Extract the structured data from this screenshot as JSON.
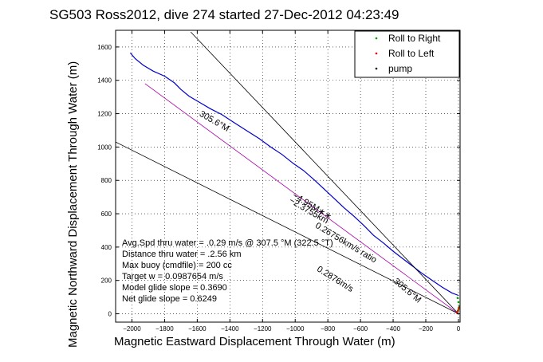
{
  "chart_data": {
    "type": "line",
    "title": "SG503 Ross2012, dive 274 started 27-Dec-2012 04:23:49",
    "xlabel": "Magnetic Eastward Displacement Through Water (m)",
    "ylabel": "Magnetic Northward Displacement Through Water (m)",
    "xlim": [
      -2100,
      10
    ],
    "ylim": [
      -50,
      1700
    ],
    "xticks": [
      -2000,
      -1800,
      -1600,
      -1400,
      -1200,
      -1000,
      -800,
      -600,
      -400,
      -200,
      0
    ],
    "yticks": [
      0,
      200,
      400,
      600,
      800,
      1000,
      1200,
      1400,
      1600
    ],
    "grid": true,
    "legend_position": "top-right",
    "legend": [
      {
        "label": "Roll to Right",
        "color": "#00a000"
      },
      {
        "label": "Roll to Left",
        "color": "#ff0000"
      },
      {
        "label": "pump",
        "color": "#000000"
      }
    ],
    "series": [
      {
        "color": "#0000cc",
        "style": "line",
        "x": [
          -2010,
          -1980,
          -1930,
          -1870,
          -1800,
          -1740,
          -1700,
          -1650,
          -1590,
          -1520,
          -1450,
          -1380,
          -1300,
          -1220,
          -1150,
          -1080,
          -1010,
          -950,
          -880,
          -820,
          -760,
          -700,
          -640,
          -580,
          -520,
          -460,
          -400,
          -340,
          -280,
          -220,
          -160,
          -100,
          -40,
          0
        ],
        "y": [
          1565,
          1530,
          1490,
          1455,
          1425,
          1385,
          1345,
          1305,
          1270,
          1230,
          1195,
          1150,
          1100,
          1050,
          1000,
          955,
          900,
          860,
          800,
          745,
          690,
          635,
          585,
          530,
          470,
          425,
          375,
          330,
          285,
          240,
          200,
          160,
          125,
          110
        ]
      },
      {
        "color": "#aa00aa",
        "style": "line",
        "x": [
          -1920,
          0
        ],
        "y": [
          1380,
          0
        ]
      },
      {
        "color": "#000000",
        "style": "line",
        "x": [
          -1640,
          0
        ],
        "y": [
          1690,
          0
        ]
      },
      {
        "color": "#000000",
        "style": "line",
        "x": [
          -2100,
          0
        ],
        "y": [
          1030,
          0
        ]
      },
      {
        "color": "#00a000",
        "style": "points",
        "x": [
          -5,
          0,
          5,
          0,
          -5
        ],
        "y": [
          10,
          25,
          45,
          70,
          95
        ]
      },
      {
        "color": "#ff0000",
        "style": "points",
        "x": [
          -8,
          -3,
          2
        ],
        "y": [
          5,
          18,
          35
        ]
      }
    ],
    "annotations": {
      "line_labels": [
        {
          "text": "305.6°M",
          "x": -1590,
          "y": 1190,
          "angle": 30
        },
        {
          "text": "−2.3755km",
          "x": -1040,
          "y": 670,
          "angle": 30
        },
        {
          "text": "−4.95M∗∗",
          "x": -1020,
          "y": 700,
          "angle": 31
        },
        {
          "text": "0.26756km/s ratio",
          "x": -880,
          "y": 520,
          "angle": 31
        },
        {
          "text": "305.6°M",
          "x": -400,
          "y": 190,
          "angle": 40
        },
        {
          "text": "0.2876m/s",
          "x": -870,
          "y": 260,
          "angle": 32
        }
      ],
      "stats": [
        "Avg.Spd thru water = .0.29 m/s @ 307.5 °M (322.5 °T)",
        "Distance thru water = .2.56 km",
        "Max buoy (cmdfile) = 200 cc",
        "Target w = 0.0987654 m/s",
        "Model glide slope = 0.3690",
        "Net glide slope = 0.6249"
      ]
    }
  }
}
